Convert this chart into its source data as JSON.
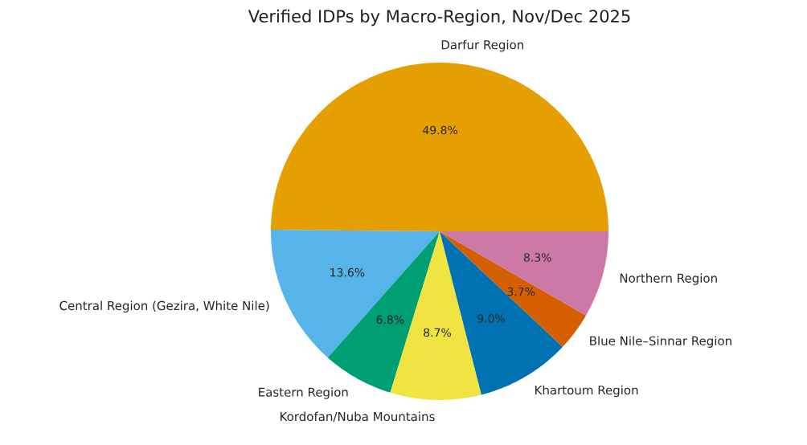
{
  "chart_data": {
    "type": "pie",
    "title": "Verified IDPs by Macro-Region, Nov/Dec 2025",
    "categories": [
      "Darfur Region",
      "Central Region (Gezira, White Nile)",
      "Eastern Region",
      "Kordofan/Nuba Mountains",
      "Khartoum Region",
      "Blue Nile–Sinnar Region",
      "Northern Region"
    ],
    "values": [
      49.8,
      13.6,
      6.8,
      8.7,
      9.0,
      3.7,
      8.3
    ],
    "value_labels": [
      "49.8%",
      "13.6%",
      "6.8%",
      "8.7%",
      "9.0%",
      "3.7%",
      "8.3%"
    ],
    "colors": [
      "#e69f00",
      "#56b4e9",
      "#009e73",
      "#f0e442",
      "#0072b2",
      "#d55e00",
      "#cc79a7"
    ]
  }
}
